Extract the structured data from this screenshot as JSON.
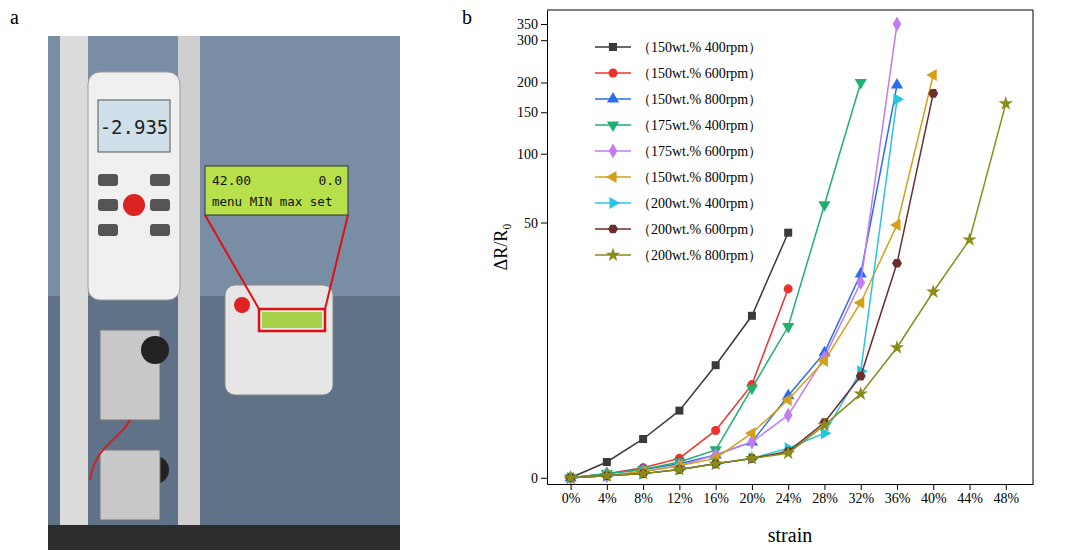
{
  "photo": {
    "panel_label": "a",
    "gauge_display": "-2.935",
    "controller_display": {
      "value": "42.00",
      "setting": "0.0",
      "menu": "menu MIN max set"
    }
  },
  "chart_data": {
    "type": "line",
    "panel_label": "b",
    "x_label": "strain",
    "y_label": "ΔR/R₀",
    "log": "y",
    "legend": "upper left",
    "xlim": [
      -2.6,
      51
    ],
    "xticks": [
      {
        "value": 0,
        "label": "0%"
      },
      {
        "value": 4,
        "label": "4%"
      },
      {
        "value": 8,
        "label": "8%"
      },
      {
        "value": 12,
        "label": "12%"
      },
      {
        "value": 16,
        "label": "16%"
      },
      {
        "value": 20,
        "label": "20%"
      },
      {
        "value": 24,
        "label": "24%"
      },
      {
        "value": 28,
        "label": "28%"
      },
      {
        "value": 32,
        "label": "32%"
      },
      {
        "value": 36,
        "label": "36%"
      },
      {
        "value": 40,
        "label": "40%"
      },
      {
        "value": 44,
        "label": "44%"
      },
      {
        "value": 48,
        "label": "48%"
      }
    ],
    "ylim": [
      -0.3,
      400
    ],
    "yticks": [
      0,
      50,
      100,
      150,
      200,
      300,
      350
    ],
    "series": [
      {
        "name": "（150wt.% 400rpm）",
        "color": "#3a3a3a",
        "marker": "square",
        "x": [
          0,
          4,
          8,
          12,
          16,
          20,
          24
        ],
        "values": [
          0,
          0.8,
          2.2,
          4.4,
          9.4,
          17.9,
          45
        ]
      },
      {
        "name": "（150wt.% 600rpm）",
        "color": "#f0302a",
        "marker": "circle",
        "x": [
          0,
          4,
          8,
          12,
          16,
          20,
          24
        ],
        "values": [
          0,
          0.2,
          0.5,
          1.0,
          2.8,
          7.0,
          24.5
        ]
      },
      {
        "name": "（150wt.% 800rpm）",
        "color": "#2a6cf0",
        "marker": "triangle-up",
        "x": [
          0,
          4,
          8,
          12,
          16,
          20,
          24,
          28,
          32,
          36
        ],
        "values": [
          0,
          0.2,
          0.4,
          0.7,
          1.2,
          2.0,
          5.8,
          11.2,
          28.9,
          195
        ]
      },
      {
        "name": "（175wt.% 400rpm）",
        "color": "#1fb070",
        "marker": "triangle-down",
        "x": [
          0,
          4,
          8,
          12,
          16,
          20,
          24,
          28,
          32
        ],
        "values": [
          0,
          0.2,
          0.4,
          0.8,
          1.5,
          6.6,
          15.7,
          60,
          200
        ]
      },
      {
        "name": "（175wt.% 600rpm）",
        "color": "#c07cf0",
        "marker": "diamond",
        "x": [
          0,
          4,
          8,
          12,
          16,
          20,
          24,
          28,
          32,
          36
        ],
        "values": [
          0,
          0.1,
          0.3,
          0.6,
          1.2,
          2.0,
          4.0,
          10.5,
          26.3,
          350
        ]
      },
      {
        "name": "（150wt.% 800rpm）",
        "color": "#d4a017",
        "marker": "triangle-left",
        "x": [
          0,
          4,
          8,
          12,
          16,
          20,
          24,
          28,
          32,
          36,
          40
        ],
        "values": [
          0,
          0.1,
          0.3,
          0.6,
          1.0,
          2.6,
          5.4,
          10.0,
          20.9,
          48.8,
          215
        ]
      },
      {
        "name": "（200wt.% 400rpm）",
        "color": "#27c6e0",
        "marker": "triangle-right",
        "x": [
          0,
          4,
          8,
          12,
          16,
          20,
          24,
          28,
          32,
          36
        ],
        "values": [
          0,
          0.1,
          0.2,
          0.4,
          0.7,
          1.0,
          1.6,
          2.6,
          8.6,
          170
        ]
      },
      {
        "name": "（200wt.% 600rpm）",
        "color": "#6b2d2d",
        "marker": "hexagon",
        "x": [
          0,
          4,
          8,
          12,
          16,
          20,
          24,
          28,
          32,
          36,
          40
        ],
        "values": [
          0,
          0.1,
          0.2,
          0.4,
          0.7,
          1.0,
          1.4,
          3.4,
          8.0,
          32.5,
          180
        ]
      },
      {
        "name": "（200wt.% 800rpm）",
        "color": "#8b8b1a",
        "marker": "star",
        "x": [
          0,
          4,
          8,
          12,
          16,
          20,
          24,
          28,
          32,
          36,
          40,
          44,
          48
        ],
        "values": [
          0,
          0.1,
          0.2,
          0.4,
          0.7,
          1.0,
          1.3,
          3.2,
          6.0,
          12.0,
          23.7,
          41.8,
          163
        ]
      }
    ]
  }
}
